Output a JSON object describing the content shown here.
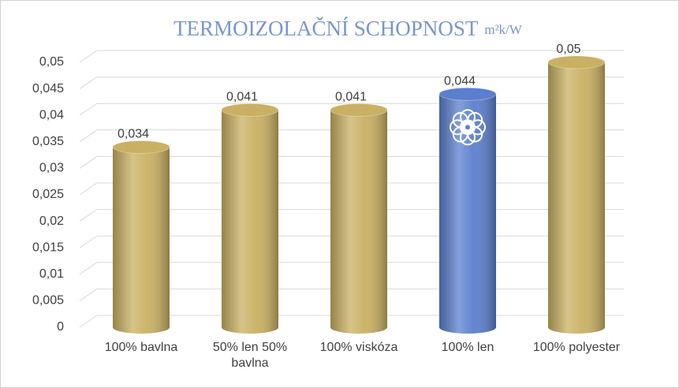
{
  "chart_data": {
    "type": "bar3d",
    "title": "TERMOIZOLAČNÍ SCHOPNOST",
    "unit": "m²k/W",
    "categories": [
      "100% bavlna",
      "50% len 50% bavlna",
      "100% viskóza",
      "100% len",
      "100% polyester"
    ],
    "values": [
      0.034,
      0.041,
      0.041,
      0.044,
      0.05
    ],
    "value_labels": [
      "0,034",
      "0,041",
      "0,041",
      "0,044",
      "0,05"
    ],
    "colors": [
      "#c9b062",
      "#c9b062",
      "#c9b062",
      "#5b7fce",
      "#c9b062"
    ],
    "ylim": [
      0,
      0.05
    ],
    "yticks": [
      0,
      {
        "value": 0.005,
        "label": "0,005"
      },
      {
        "value": 0.01,
        "label": "0,01"
      },
      {
        "value": 0.015,
        "label": "0,015"
      },
      {
        "value": 0.02,
        "label": "0,02"
      },
      {
        "value": 0.025,
        "label": "0,025"
      },
      {
        "value": 0.03,
        "label": "0,03"
      },
      {
        "value": 0.035,
        "label": "0,035"
      },
      {
        "value": 0.04,
        "label": "0,04"
      },
      {
        "value": 0.045,
        "label": "0,045"
      },
      {
        "value": 0.05,
        "label": "0,05"
      }
    ],
    "grid": true
  }
}
